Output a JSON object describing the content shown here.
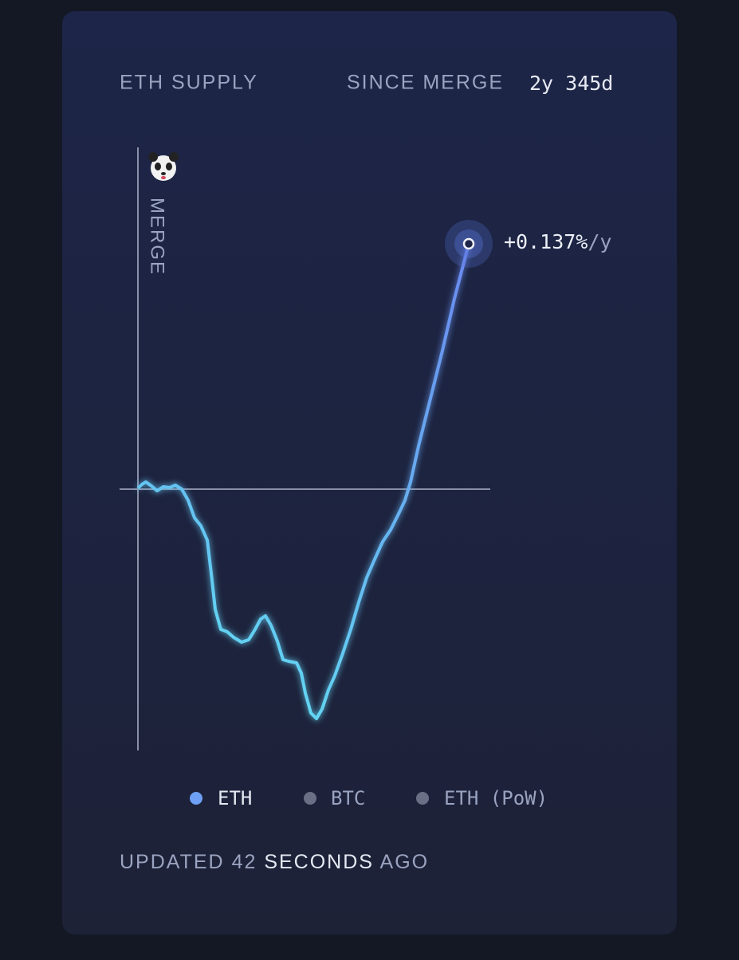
{
  "chart_data": {
    "type": "line",
    "title": "ETH SUPPLY",
    "since_label": "SINCE MERGE",
    "since_value": "2y 345d",
    "annotation": "MERGE",
    "end_label": "+0.137%",
    "end_unit": "/y",
    "xlim": [
      0,
      415
    ],
    "ylim": [
      -33,
      31
    ],
    "x": [
      0,
      5,
      10,
      17,
      24,
      32,
      40,
      47,
      55,
      63,
      71,
      79,
      87,
      92,
      97,
      104,
      112,
      120,
      130,
      139,
      147,
      154,
      160,
      167,
      175,
      182,
      189,
      199,
      205,
      210,
      217,
      224,
      231,
      239,
      247,
      257,
      267,
      277,
      287,
      297,
      307,
      317,
      327,
      335,
      342,
      352,
      367,
      382,
      397,
      415
    ],
    "series": [
      {
        "name": "ETH",
        "color": "#6ea0f5",
        "values": [
          -0.1,
          0.4,
          0.7,
          0.2,
          -0.4,
          0.1,
          0,
          0.3,
          -0.2,
          -1.6,
          -3.8,
          -4.8,
          -6.6,
          -10.8,
          -15.3,
          -17.8,
          -18.1,
          -18.8,
          -19.4,
          -19.1,
          -17.8,
          -16.5,
          -16.1,
          -17.3,
          -19.3,
          -21.6,
          -21.8,
          -22,
          -23.3,
          -25.8,
          -28.3,
          -29,
          -27.8,
          -25.4,
          -23.6,
          -20.8,
          -17.8,
          -14.4,
          -11.3,
          -9,
          -6.8,
          -5.3,
          -3.3,
          -1.6,
          0.7,
          5.2,
          11.2,
          17.2,
          23.7,
          30.6
        ]
      }
    ],
    "legend_inactive": [
      {
        "name": "BTC",
        "color": "#6b6f85"
      },
      {
        "name": "ETH (PoW)",
        "color": "#6b6f85"
      }
    ]
  },
  "footer": {
    "prefix": "UPDATED",
    "count": 42,
    "unit": "SECONDS",
    "suffix": "AGO"
  }
}
